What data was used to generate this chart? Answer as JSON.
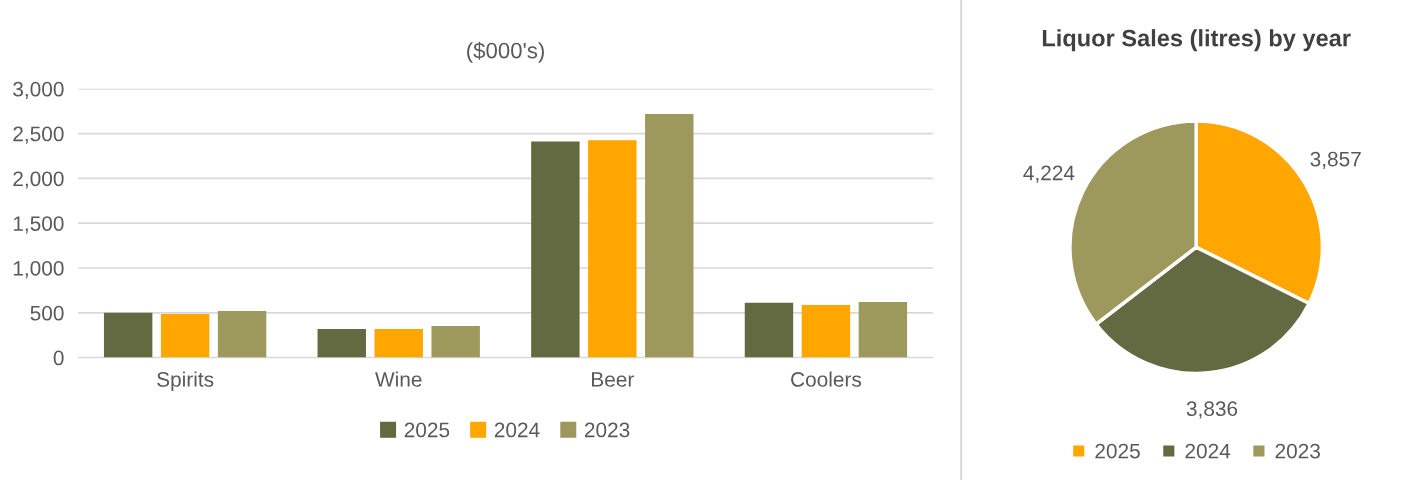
{
  "chart_data": [
    {
      "type": "bar",
      "title": "($000's)",
      "categories": [
        "Spirits",
        "Wine",
        "Beer",
        "Coolers"
      ],
      "series": [
        {
          "name": "2025",
          "color": "#636940",
          "values": [
            500,
            320,
            2413,
            613
          ]
        },
        {
          "name": "2024",
          "color": "#ffa600",
          "values": [
            487,
            320,
            2427,
            587
          ]
        },
        {
          "name": "2023",
          "color": "#9d985c",
          "values": [
            520,
            353,
            2720,
            620
          ]
        }
      ],
      "ylim": [
        0,
        3000
      ],
      "yticks": [
        {
          "value": 0,
          "label": "0"
        },
        {
          "value": 500,
          "label": "500"
        },
        {
          "value": 1000,
          "label": "1,000"
        },
        {
          "value": 1500,
          "label": "1,500"
        },
        {
          "value": 2000,
          "label": "2,000"
        },
        {
          "value": 2500,
          "label": "2,500"
        },
        {
          "value": 3000,
          "label": "3,000"
        }
      ],
      "grid": "y",
      "legend": "bottom"
    },
    {
      "type": "pie",
      "title": "Liquor Sales (litres) by year",
      "categories": [
        "2025",
        "2024",
        "2023"
      ],
      "values": [
        3857,
        3836,
        4224
      ],
      "colors": [
        "#ffa600",
        "#636940",
        "#9d985c"
      ],
      "value_labels": [
        "3,857",
        "3,836",
        "4,224"
      ],
      "legend": "bottom"
    }
  ]
}
